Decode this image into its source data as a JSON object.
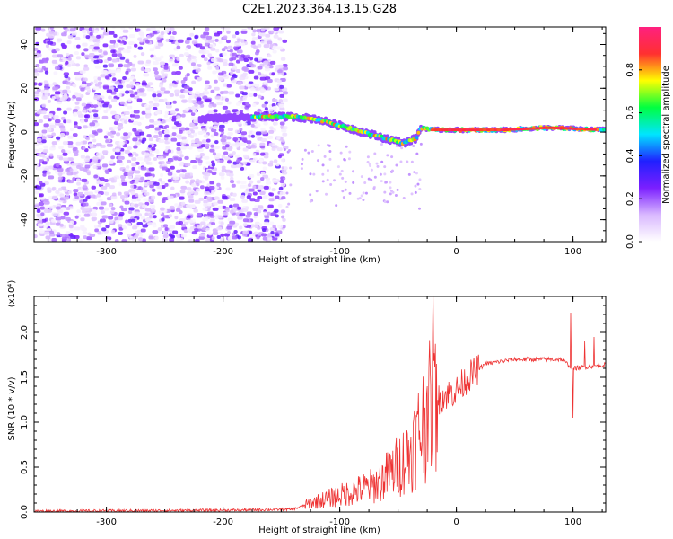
{
  "title": "C2E1.2023.364.13.15.G28",
  "chart_data": [
    {
      "type": "heatmap",
      "xlabel": "Height of straight line (km)",
      "ylabel": "Frequency (Hz)",
      "xlim": [
        -362,
        128
      ],
      "ylim": [
        -50,
        48
      ],
      "x_ticks": [
        -300,
        -200,
        -100,
        0,
        100
      ],
      "y_ticks": [
        -40,
        -20,
        0,
        20,
        40
      ],
      "colorbar": {
        "label": "Normalized spectral amplitude",
        "range": [
          0,
          1
        ],
        "ticks": [
          0.0,
          0.2,
          0.4,
          0.6,
          0.8
        ],
        "colors": [
          "#ffffff",
          "#d9b8ff",
          "#7b1fff",
          "#2020ff",
          "#00e5ff",
          "#00ff40",
          "#ffff00",
          "#ff3030",
          "#ff2080"
        ]
      },
      "ridge": [
        {
          "x": -220,
          "f": 6
        },
        {
          "x": -170,
          "f": 7
        },
        {
          "x": -140,
          "f": 7
        },
        {
          "x": -120,
          "f": 6
        },
        {
          "x": -100,
          "f": 3
        },
        {
          "x": -80,
          "f": 0
        },
        {
          "x": -60,
          "f": -3
        },
        {
          "x": -45,
          "f": -5
        },
        {
          "x": -35,
          "f": -3
        },
        {
          "x": -30,
          "f": 2
        },
        {
          "x": -20,
          "f": 1
        },
        {
          "x": 0,
          "f": 1
        },
        {
          "x": 40,
          "f": 1
        },
        {
          "x": 80,
          "f": 2
        },
        {
          "x": 128,
          "f": 1
        }
      ]
    },
    {
      "type": "line",
      "xlabel": "Height of straight line (km)",
      "ylabel": "SNR (10 * v/v)",
      "scale_label": "(x10⁴)",
      "xlim": [
        -362,
        128
      ],
      "ylim": [
        0,
        2.4
      ],
      "x_ticks": [
        -300,
        -200,
        -100,
        0,
        100
      ],
      "y_ticks": [
        0.0,
        0.5,
        1.0,
        1.5,
        2.0
      ],
      "color": "#ee3333",
      "envelope": [
        {
          "x": -362,
          "y": 0.01
        },
        {
          "x": -200,
          "y": 0.02
        },
        {
          "x": -140,
          "y": 0.03
        },
        {
          "x": -125,
          "y": 0.1
        },
        {
          "x": -110,
          "y": 0.15
        },
        {
          "x": -90,
          "y": 0.22
        },
        {
          "x": -70,
          "y": 0.3
        },
        {
          "x": -55,
          "y": 0.45
        },
        {
          "x": -40,
          "y": 0.65
        },
        {
          "x": -30,
          "y": 0.95
        },
        {
          "x": -20,
          "y": 1.2
        },
        {
          "x": -10,
          "y": 1.3
        },
        {
          "x": 0,
          "y": 1.35
        },
        {
          "x": 10,
          "y": 1.5
        },
        {
          "x": 25,
          "y": 1.65
        },
        {
          "x": 50,
          "y": 1.7
        },
        {
          "x": 90,
          "y": 1.7
        },
        {
          "x": 100,
          "y": 1.6
        },
        {
          "x": 128,
          "y": 1.64
        }
      ],
      "spikes": [
        {
          "x": -20,
          "y": 2.45
        },
        {
          "x": -17,
          "y": 1.65
        },
        {
          "x": -25,
          "y": 1.4
        },
        {
          "x": 98,
          "y": 2.22
        },
        {
          "x": 100,
          "y": 1.05
        },
        {
          "x": 110,
          "y": 1.9
        },
        {
          "x": 118,
          "y": 1.95
        }
      ]
    }
  ]
}
